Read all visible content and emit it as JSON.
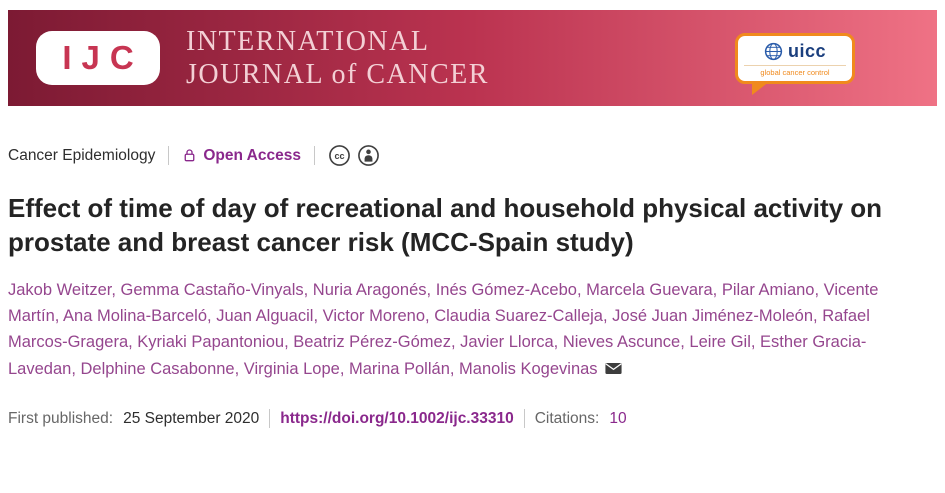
{
  "banner": {
    "logo_text": "IJC",
    "journal_line1": "INTERNATIONAL",
    "journal_line2": "JOURNAL of CANCER",
    "uicc_name": "uicc",
    "uicc_tagline": "global cancer control"
  },
  "meta": {
    "category": "Cancer Epidemiology",
    "open_access_label": "Open Access",
    "license_icons": [
      "cc",
      "by"
    ]
  },
  "article": {
    "title": "Effect of time of day of recreational and household physical activity on prostate and breast cancer risk (MCC-Spain study)"
  },
  "authors": [
    "Jakob Weitzer",
    "Gemma Castaño-Vinyals",
    "Nuria Aragonés",
    "Inés Gómez-Acebo",
    "Marcela Guevara",
    "Pilar Amiano",
    "Vicente Martín",
    "Ana Molina-Barceló",
    "Juan Alguacil",
    "Victor Moreno",
    "Claudia Suarez-Calleja",
    "José Juan Jiménez-Moleón",
    "Rafael Marcos-Gragera",
    "Kyriaki Papantoniou",
    "Beatriz Pérez-Gómez",
    "Javier Llorca",
    "Nieves Ascunce",
    "Leire Gil",
    "Esther Gracia-Lavedan",
    "Delphine Casabonne",
    "Virginia Lope",
    "Marina Pollán",
    "Manolis Kogevinas"
  ],
  "footer": {
    "first_published_label": "First published:",
    "first_published_date": "25 September 2020",
    "doi_link": "https://doi.org/10.1002/ijc.33310",
    "citations_label": "Citations:",
    "citations_count": "10"
  },
  "colors": {
    "accent_purple": "#8a288c",
    "author_purple": "#95468e",
    "banner_gradient_left": "#7c1a33",
    "banner_gradient_mid": "#bb3350",
    "banner_gradient_right": "#ef7285",
    "uicc_orange": "#f08a1d"
  }
}
